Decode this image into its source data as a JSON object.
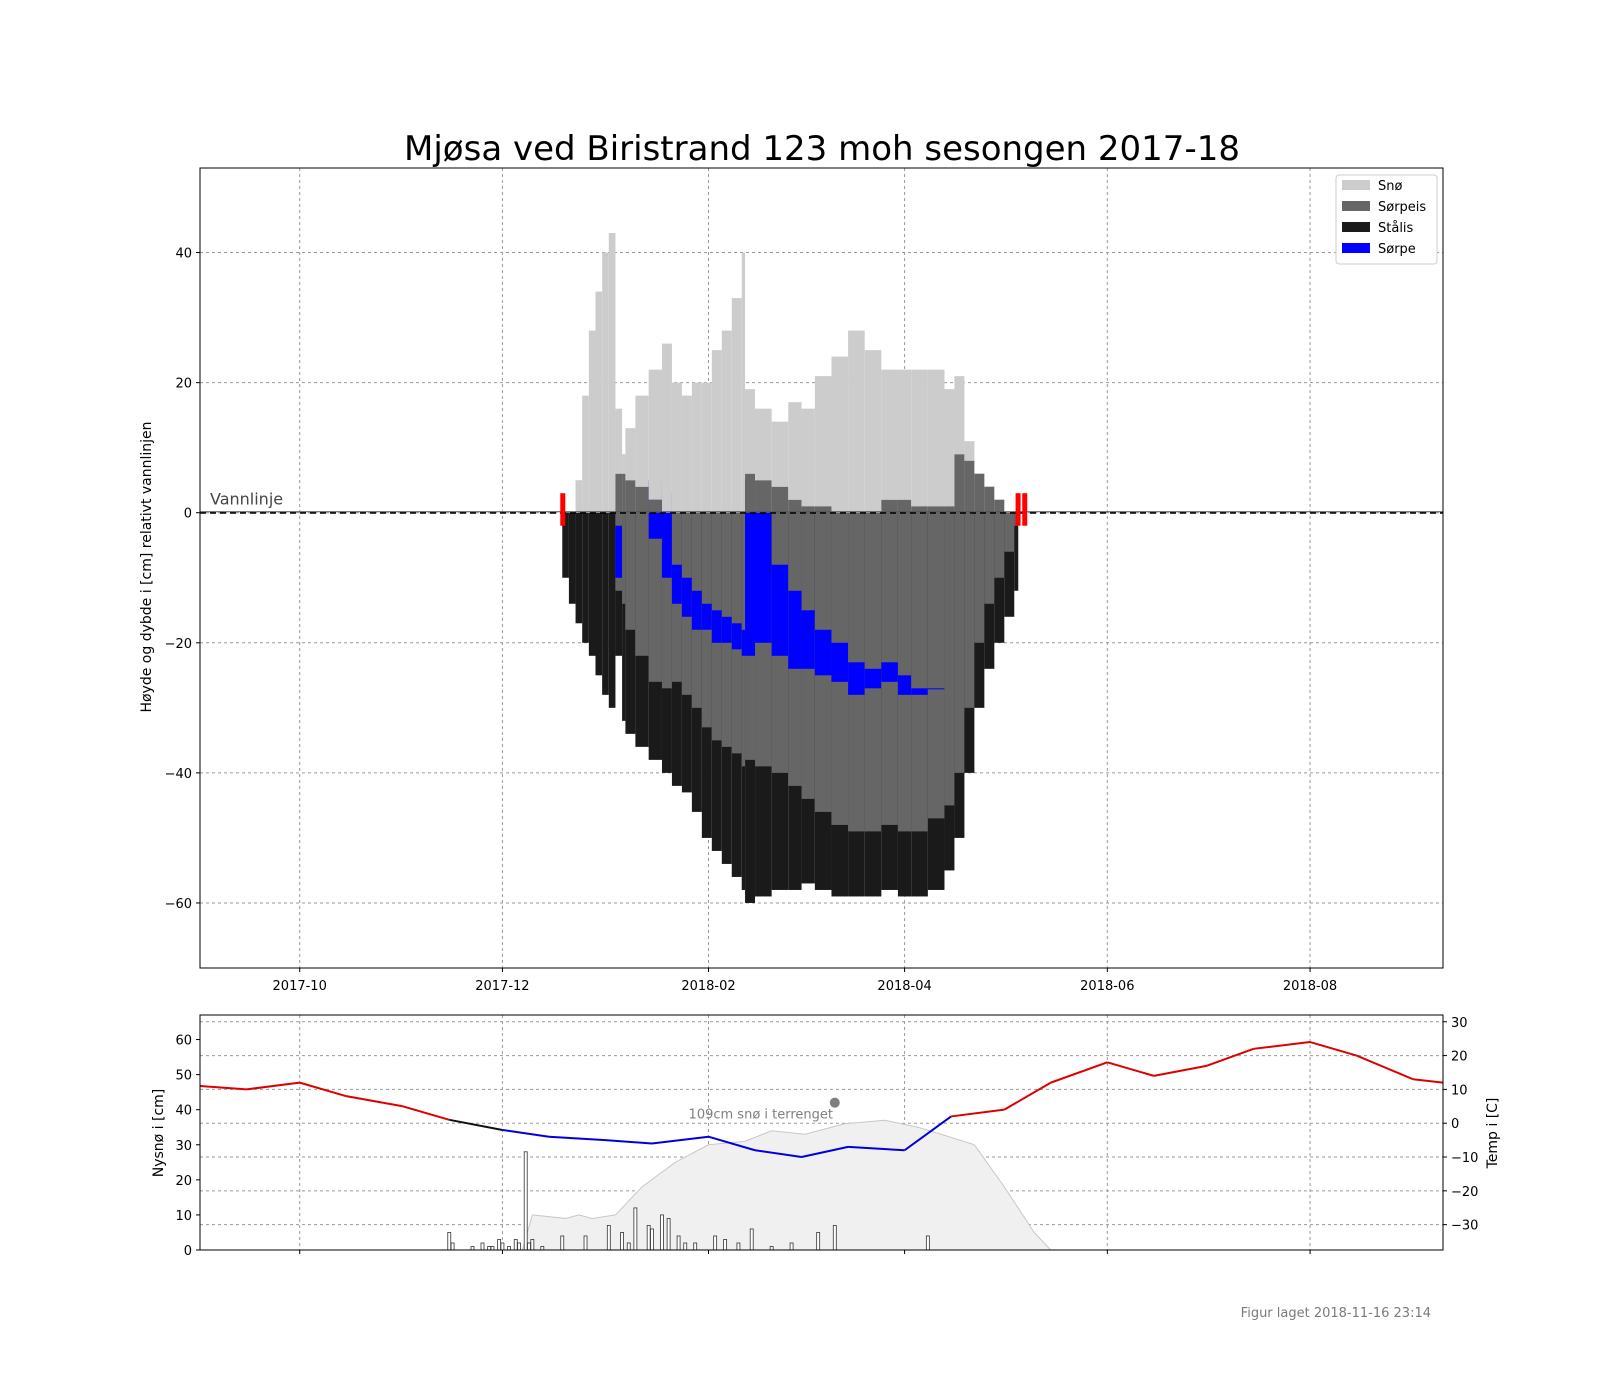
{
  "figure": {
    "footer": "Figur laget 2018-11-16 23:14"
  },
  "colors": {
    "snow": "#cccccc",
    "slush_ice": "#666666",
    "black_ice": "#1a1a1a",
    "slush": "#0000ff",
    "warm": "#dd0000",
    "cold": "#0000dd",
    "mild": "#111111",
    "terrain_snow": "#f0f0f0",
    "marker": "#ff0000"
  },
  "chart_data": [
    {
      "type": "bar",
      "title": "Mjøsa ved Biristrand 123 moh sesongen 2017-18",
      "xlabel": "",
      "ylabel": "Høyde og dybde i [cm] relativt vannlinjen",
      "xlim": [
        "2017-09-01",
        "2018-09-10"
      ],
      "ylim": [
        -70,
        53
      ],
      "yticks": [
        40,
        20,
        0,
        -20,
        -40,
        -60
      ],
      "ytick_labels": [
        "40",
        "20",
        "0",
        "−20",
        "−40",
        "−60"
      ],
      "xtick_labels": [
        "2017-10",
        "2017-12",
        "2018-02",
        "2018-04",
        "2018-06",
        "2018-08"
      ],
      "grid": true,
      "legend_position": "top-right",
      "legend": [
        "Snø",
        "Sørpeis",
        "Stålis",
        "Sørpe"
      ],
      "waterline_label": "Vannlinje",
      "stack_order_above_water": [
        "Sørpeis",
        "Snø"
      ],
      "stack_order_below_water": [
        "Sørpeis",
        "Stålis"
      ],
      "dates": [
        "2017-12-19",
        "2017-12-21",
        "2017-12-23",
        "2017-12-25",
        "2017-12-27",
        "2017-12-29",
        "2017-12-31",
        "2018-01-02",
        "2018-01-04",
        "2018-01-06",
        "2018-01-07",
        "2018-01-10",
        "2018-01-14",
        "2018-01-18",
        "2018-01-21",
        "2018-01-24",
        "2018-01-27",
        "2018-01-30",
        "2018-02-02",
        "2018-02-05",
        "2018-02-08",
        "2018-02-11",
        "2018-02-12",
        "2018-02-15",
        "2018-02-20",
        "2018-02-25",
        "2018-03-01",
        "2018-03-05",
        "2018-03-10",
        "2018-03-15",
        "2018-03-20",
        "2018-03-25",
        "2018-03-30",
        "2018-04-03",
        "2018-04-08",
        "2018-04-13",
        "2018-04-16",
        "2018-04-19",
        "2018-04-22",
        "2018-04-25",
        "2018-04-28",
        "2018-05-01",
        "2018-05-04"
      ],
      "series": [
        {
          "name": "Snø",
          "values": [
            0,
            0,
            5,
            18,
            28,
            34,
            40,
            43,
            10,
            3,
            8,
            14,
            20,
            26,
            20,
            18,
            20,
            20,
            25,
            28,
            33,
            40,
            13,
            11,
            10,
            15,
            15,
            20,
            24,
            28,
            25,
            20,
            20,
            21,
            21,
            18,
            12,
            3,
            0,
            0,
            0,
            0,
            0
          ]
        },
        {
          "name": "Sørpeis",
          "values": [
            0,
            0,
            0,
            0,
            0,
            0,
            0,
            0,
            6,
            6,
            5,
            4,
            2,
            0,
            0,
            0,
            0,
            0,
            0,
            0,
            0,
            0,
            6,
            5,
            4,
            2,
            1,
            1,
            0,
            0,
            0,
            2,
            2,
            1,
            1,
            1,
            9,
            8,
            6,
            4,
            2,
            0,
            0
          ]
        },
        {
          "name": "Stålis",
          "values": [
            -10,
            -14,
            -17,
            -20,
            -22,
            -25,
            -28,
            -30,
            -6,
            -22,
            -24,
            -26,
            -28,
            -30,
            -32,
            -33,
            -36,
            -40,
            -42,
            -44,
            -46,
            -48,
            -50,
            -49,
            -48,
            -48,
            -47,
            -48,
            -49,
            -48,
            -48,
            -48,
            -48,
            -49,
            -48,
            -45,
            -40,
            -30,
            -20,
            -14,
            -10,
            -6,
            -2
          ]
        },
        {
          "name": "Sørpeis (under vannlinjen)",
          "values": [
            0,
            0,
            0,
            0,
            0,
            0,
            0,
            0,
            -12,
            -14,
            -18,
            -22,
            -26,
            -27,
            -26,
            -28,
            -30,
            -33,
            -35,
            -36,
            -37,
            -39,
            -38,
            -39,
            -40,
            -42,
            -44,
            -46,
            -48,
            -49,
            -49,
            -48,
            -49,
            -49,
            -47,
            -45,
            -40,
            -30,
            -20,
            -14,
            -10,
            -6,
            -2
          ]
        },
        {
          "name": "Sørpe",
          "values": [
            0,
            0,
            0,
            0,
            0,
            0,
            0,
            0,
            -2,
            0,
            0,
            0,
            -4,
            -10,
            -14,
            -16,
            -18,
            -18,
            -20,
            -20,
            -21,
            -22,
            -22,
            -20,
            -22,
            -24,
            -24,
            -25,
            -26,
            -28,
            -27,
            -26,
            -28,
            -28,
            -27,
            0,
            0,
            0,
            0,
            0,
            0,
            0,
            0
          ]
        },
        {
          "name": "Sørpe (øvre kant)",
          "values": [
            0,
            0,
            0,
            0,
            0,
            0,
            0,
            0,
            -10,
            0,
            0,
            0,
            5,
            3,
            -8,
            -10,
            -12,
            -14,
            -15,
            -16,
            -17,
            -18,
            5,
            0,
            -8,
            -12,
            -15,
            -18,
            -20,
            -23,
            -24,
            -23,
            -25,
            -27,
            -27,
            0,
            0,
            0,
            0,
            0,
            0,
            0,
            0
          ]
        }
      ],
      "ice_on_marker": "2017-12-19",
      "ice_off_markers": [
        "2018-05-05",
        "2018-05-07"
      ]
    },
    {
      "type": "bar",
      "xlabel": "",
      "ylabel": "Nysnø i [cm]",
      "ylabel_right": "Temp i [C]",
      "ylim": [
        0,
        67
      ],
      "ylim_right": [
        -37.5,
        32
      ],
      "yticks": [
        0,
        10,
        20,
        30,
        40,
        50,
        60
      ],
      "ytick_labels": [
        "0",
        "10",
        "20",
        "30",
        "40",
        "50",
        "60"
      ],
      "yticks_right": [
        30,
        20,
        10,
        0,
        -10,
        -20,
        -30
      ],
      "ytick_labels_right": [
        "30",
        "20",
        "10",
        "0",
        "−10",
        "−20",
        "−30"
      ],
      "grid": true,
      "annotation": "109cm snø i terrenget",
      "annotation_point": {
        "date": "2018-03-11",
        "value": 42
      },
      "new_snow": {
        "dates": [
          "2017-11-15",
          "2017-11-16",
          "2017-11-22",
          "2017-11-25",
          "2017-11-27",
          "2017-11-28",
          "2017-11-30",
          "2017-12-01",
          "2017-12-03",
          "2017-12-05",
          "2017-12-06",
          "2017-12-08",
          "2017-12-09",
          "2017-12-10",
          "2017-12-13",
          "2017-12-19",
          "2017-12-26",
          "2018-01-02",
          "2018-01-06",
          "2018-01-08",
          "2018-01-10",
          "2018-01-14",
          "2018-01-15",
          "2018-01-18",
          "2018-01-20",
          "2018-01-23",
          "2018-01-25",
          "2018-01-28",
          "2018-02-03",
          "2018-02-06",
          "2018-02-10",
          "2018-02-14",
          "2018-02-20",
          "2018-02-26",
          "2018-03-06",
          "2018-03-11",
          "2018-04-08"
        ],
        "values": [
          5,
          2,
          1,
          2,
          1,
          1,
          3,
          2,
          1,
          3,
          2,
          28,
          2,
          3,
          1,
          4,
          4,
          7,
          5,
          2,
          12,
          7,
          6,
          10,
          9,
          4,
          2,
          2,
          4,
          3,
          2,
          6,
          1,
          2,
          5,
          7,
          4
        ]
      },
      "terrain_snow": {
        "dates": [
          "2017-12-07",
          "2017-12-10",
          "2017-12-20",
          "2017-12-24",
          "2017-12-28",
          "2018-01-04",
          "2018-01-12",
          "2018-01-22",
          "2018-02-01",
          "2018-02-12",
          "2018-02-20",
          "2018-03-02",
          "2018-03-14",
          "2018-03-26",
          "2018-04-05",
          "2018-04-12",
          "2018-04-22",
          "2018-05-01",
          "2018-05-10",
          "2018-05-15"
        ],
        "values": [
          0,
          10,
          9,
          10,
          9,
          10,
          18,
          25,
          30,
          31,
          34,
          33,
          36,
          37,
          35,
          33,
          30,
          18,
          5,
          0
        ]
      },
      "temperature": {
        "dates": [
          "2017-09-01",
          "2017-09-15",
          "2017-10-01",
          "2017-10-15",
          "2017-11-01",
          "2017-11-15",
          "2017-12-01",
          "2017-12-15",
          "2018-01-01",
          "2018-01-15",
          "2018-02-01",
          "2018-02-15",
          "2018-03-01",
          "2018-03-15",
          "2018-04-01",
          "2018-04-15",
          "2018-05-01",
          "2018-05-15",
          "2018-06-01",
          "2018-06-15",
          "2018-07-01",
          "2018-07-15",
          "2018-08-01",
          "2018-08-15",
          "2018-09-01",
          "2018-09-10"
        ],
        "values": [
          11,
          10,
          12,
          8,
          5,
          1,
          -2,
          -4,
          -5,
          -6,
          -4,
          -8,
          -10,
          -7,
          -8,
          2,
          4,
          12,
          18,
          14,
          17,
          22,
          24,
          20,
          13,
          12
        ]
      }
    }
  ]
}
